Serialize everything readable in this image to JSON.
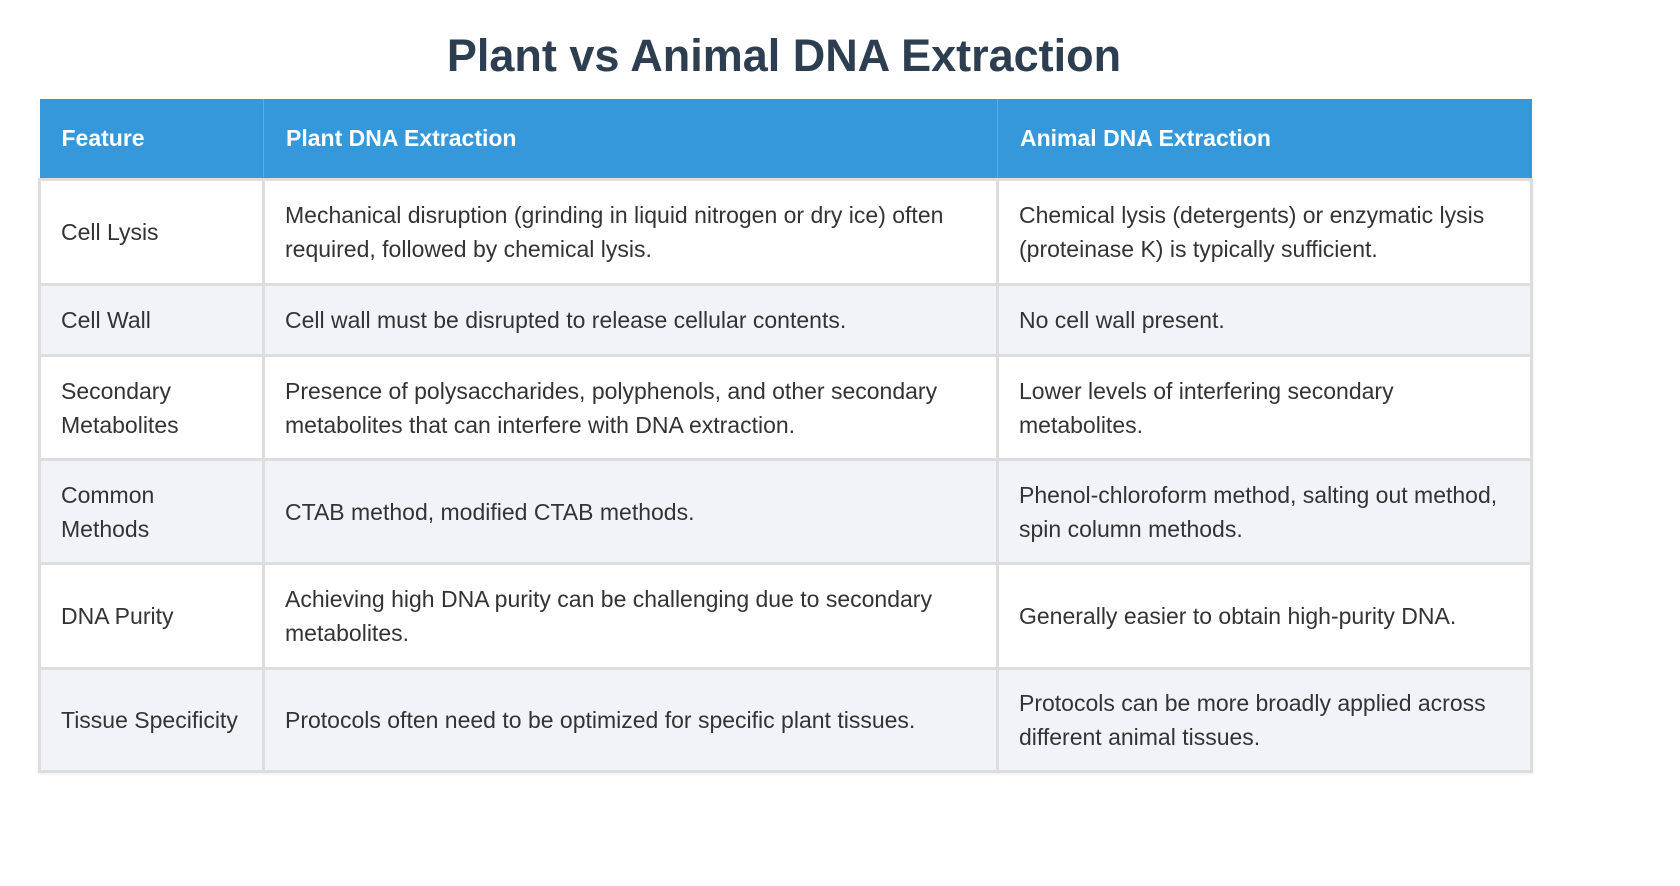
{
  "title": "Plant vs Animal DNA Extraction",
  "colors": {
    "title": "#2c3e50",
    "header_bg": "#3498db",
    "header_text": "#ffffff",
    "row_odd_bg": "#ffffff",
    "row_even_bg": "#f0f4f8",
    "border": "#dddddd",
    "body_text": "#333333"
  },
  "table": {
    "headers": [
      "Feature",
      "Plant DNA Extraction",
      "Animal DNA Extraction"
    ],
    "rows": [
      {
        "feature": "Cell Lysis",
        "plant": "Mechanical disruption (grinding in liquid nitrogen or dry ice) often required, followed by chemical lysis.",
        "animal": "Chemical lysis (detergents) or enzymatic lysis (proteinase K) is typically sufficient."
      },
      {
        "feature": "Cell Wall",
        "plant": "Cell wall must be disrupted to release cellular contents.",
        "animal": "No cell wall present."
      },
      {
        "feature": "Secondary Metabolites",
        "plant": "Presence of polysaccharides, polyphenols, and other secondary metabolites that can interfere with DNA extraction.",
        "animal": "Lower levels of interfering secondary metabolites."
      },
      {
        "feature": "Common Methods",
        "plant": "CTAB method, modified CTAB methods.",
        "animal": "Phenol-chloroform method, salting out method, spin column methods."
      },
      {
        "feature": "DNA Purity",
        "plant": "Achieving high DNA purity can be challenging due to secondary metabolites.",
        "animal": "Generally easier to obtain high-purity DNA."
      },
      {
        "feature": "Tissue Specificity",
        "plant": "Protocols often need to be optimized for specific plant tissues.",
        "animal": "Protocols can be more broadly applied across different animal tissues."
      }
    ]
  }
}
